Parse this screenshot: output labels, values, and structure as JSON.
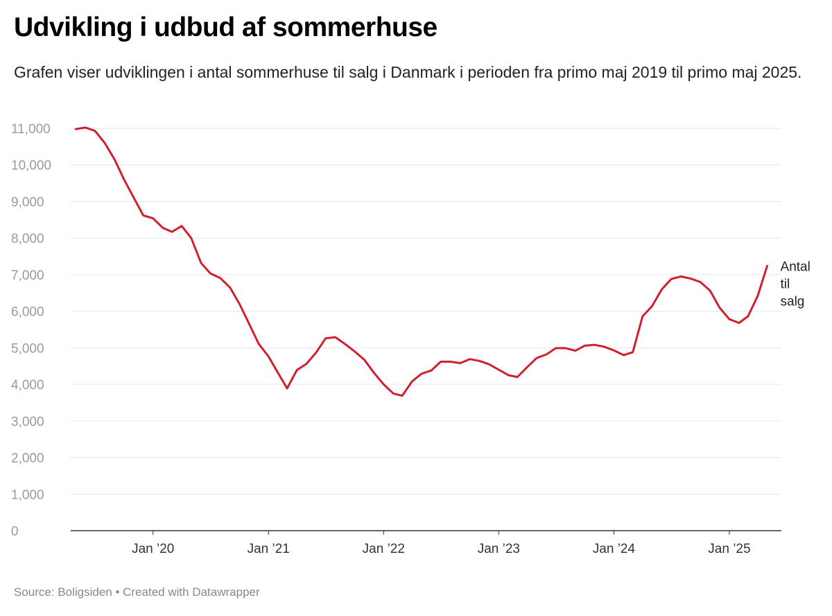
{
  "header": {
    "title": "Udvikling i udbud af sommerhuse",
    "subtitle": "Grafen viser udviklingen i antal sommerhuse til salg i Danmark i perioden fra primo maj 2019 til primo maj 2025."
  },
  "footer": {
    "source": "Source: Boligsiden • Created with Datawrapper"
  },
  "colors": {
    "line": "#d0202e",
    "grid": "#e6e6e6",
    "axis": "#333333"
  },
  "chart_data": {
    "type": "line",
    "title": "Udvikling i udbud af sommerhuse",
    "xlabel": "",
    "ylabel": "",
    "ylim": [
      0,
      11000
    ],
    "xlim": [
      "2019-04-15",
      "2025-06-15"
    ],
    "grid": true,
    "yticks": [
      0,
      1000,
      2000,
      3000,
      4000,
      5000,
      6000,
      7000,
      8000,
      9000,
      10000,
      11000
    ],
    "ytick_labels": [
      "0",
      "1,000",
      "2,000",
      "3,000",
      "4,000",
      "5,000",
      "6,000",
      "7,000",
      "8,000",
      "9,000",
      "10,000",
      "11,000"
    ],
    "xticks": [
      {
        "date": "2020-01-01",
        "label": "Jan ’20"
      },
      {
        "date": "2021-01-01",
        "label": "Jan ’21"
      },
      {
        "date": "2022-01-01",
        "label": "Jan ’22"
      },
      {
        "date": "2023-01-01",
        "label": "Jan ’23"
      },
      {
        "date": "2024-01-01",
        "label": "Jan ’24"
      },
      {
        "date": "2025-01-01",
        "label": "Jan ’25"
      }
    ],
    "series": [
      {
        "name": "Antal til salg",
        "label_lines": [
          "Antal",
          "til",
          "salg"
        ],
        "color": "#d0202e",
        "points": [
          [
            "2019-05-01",
            10980
          ],
          [
            "2019-06-01",
            11020
          ],
          [
            "2019-07-01",
            10930
          ],
          [
            "2019-08-01",
            10600
          ],
          [
            "2019-09-01",
            10150
          ],
          [
            "2019-10-01",
            9600
          ],
          [
            "2019-11-01",
            9100
          ],
          [
            "2019-12-01",
            8620
          ],
          [
            "2020-01-01",
            8540
          ],
          [
            "2020-02-01",
            8280
          ],
          [
            "2020-03-01",
            8170
          ],
          [
            "2020-04-01",
            8330
          ],
          [
            "2020-05-01",
            8000
          ],
          [
            "2020-06-01",
            7320
          ],
          [
            "2020-07-01",
            7030
          ],
          [
            "2020-08-01",
            6910
          ],
          [
            "2020-09-01",
            6650
          ],
          [
            "2020-10-01",
            6200
          ],
          [
            "2020-11-01",
            5650
          ],
          [
            "2020-12-01",
            5110
          ],
          [
            "2021-01-01",
            4760
          ],
          [
            "2021-02-01",
            4300
          ],
          [
            "2021-03-01",
            3890
          ],
          [
            "2021-04-01",
            4390
          ],
          [
            "2021-05-01",
            4560
          ],
          [
            "2021-06-01",
            4870
          ],
          [
            "2021-07-01",
            5260
          ],
          [
            "2021-08-01",
            5290
          ],
          [
            "2021-09-01",
            5100
          ],
          [
            "2021-10-01",
            4900
          ],
          [
            "2021-11-01",
            4670
          ],
          [
            "2021-12-01",
            4320
          ],
          [
            "2022-01-01",
            4000
          ],
          [
            "2022-02-01",
            3750
          ],
          [
            "2022-03-01",
            3690
          ],
          [
            "2022-04-01",
            4080
          ],
          [
            "2022-05-01",
            4290
          ],
          [
            "2022-06-01",
            4380
          ],
          [
            "2022-07-01",
            4620
          ],
          [
            "2022-08-01",
            4620
          ],
          [
            "2022-09-01",
            4580
          ],
          [
            "2022-10-01",
            4690
          ],
          [
            "2022-11-01",
            4640
          ],
          [
            "2022-12-01",
            4550
          ],
          [
            "2023-01-01",
            4400
          ],
          [
            "2023-02-01",
            4250
          ],
          [
            "2023-03-01",
            4200
          ],
          [
            "2023-04-01",
            4470
          ],
          [
            "2023-05-01",
            4720
          ],
          [
            "2023-06-01",
            4820
          ],
          [
            "2023-07-01",
            4990
          ],
          [
            "2023-08-01",
            4990
          ],
          [
            "2023-09-01",
            4920
          ],
          [
            "2023-10-01",
            5060
          ],
          [
            "2023-11-01",
            5080
          ],
          [
            "2023-12-01",
            5030
          ],
          [
            "2024-01-01",
            4930
          ],
          [
            "2024-02-01",
            4800
          ],
          [
            "2024-03-01",
            4880
          ],
          [
            "2024-04-01",
            5860
          ],
          [
            "2024-05-01",
            6140
          ],
          [
            "2024-06-01",
            6600
          ],
          [
            "2024-07-01",
            6880
          ],
          [
            "2024-08-01",
            6950
          ],
          [
            "2024-09-01",
            6890
          ],
          [
            "2024-10-01",
            6800
          ],
          [
            "2024-11-01",
            6560
          ],
          [
            "2024-12-01",
            6100
          ],
          [
            "2025-01-01",
            5780
          ],
          [
            "2025-02-01",
            5680
          ],
          [
            "2025-03-01",
            5860
          ],
          [
            "2025-04-01",
            6420
          ],
          [
            "2025-05-01",
            7240
          ]
        ]
      }
    ]
  }
}
